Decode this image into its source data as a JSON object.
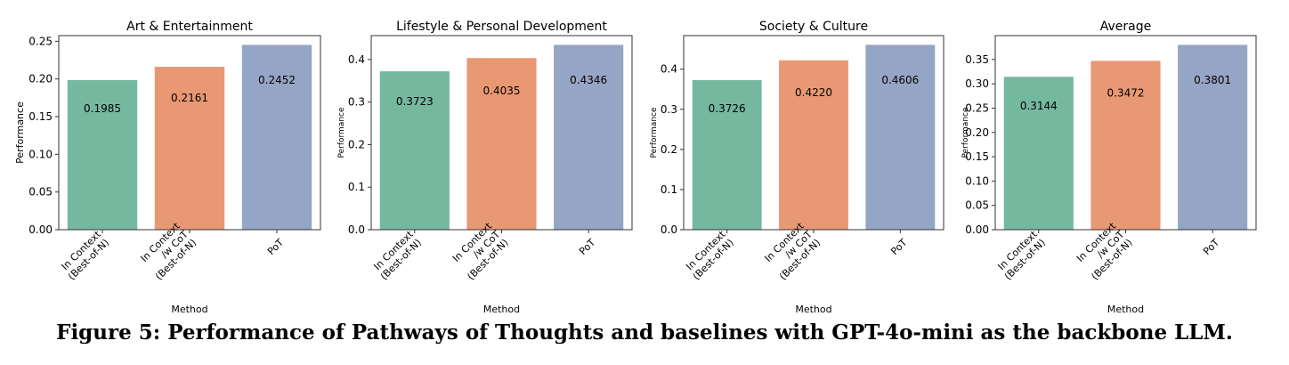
{
  "chart_data": [
    {
      "type": "bar",
      "title": "Art & Entertainment",
      "xlabel": "Method",
      "ylabel": "Performance",
      "categories": [
        "In Context\n(Best-of-N)",
        "In Context\n/w CoT\n(Best-of-N)",
        "PoT"
      ],
      "values": [
        0.1985,
        0.2161,
        0.2452
      ],
      "value_labels": [
        "0.1985",
        "0.2161",
        "0.2452"
      ],
      "colors": [
        "#75b8a0",
        "#e99874",
        "#95a5c5"
      ],
      "ylim": [
        0,
        0.2575
      ],
      "yticks": [
        0,
        0.05,
        0.1,
        0.15,
        0.2,
        0.25
      ],
      "ytick_labels": [
        "0.00",
        "0.05",
        "0.10",
        "0.15",
        "0.20",
        "0.25"
      ]
    },
    {
      "type": "bar",
      "title": "Lifestyle & Personal Development",
      "xlabel": "Method",
      "ylabel": "Performance",
      "categories": [
        "In Context\n(Best-of-N)",
        "In Context\n/w CoT\n(Best-of-N)",
        "PoT"
      ],
      "values": [
        0.3723,
        0.4035,
        0.4346
      ],
      "value_labels": [
        "0.3723",
        "0.4035",
        "0.4346"
      ],
      "colors": [
        "#75b8a0",
        "#e99874",
        "#95a5c5"
      ],
      "ylim": [
        0,
        0.4563
      ],
      "yticks": [
        0,
        0.1,
        0.2,
        0.3,
        0.4
      ],
      "ytick_labels": [
        "0.0",
        "0.1",
        "0.2",
        "0.3",
        "0.4"
      ]
    },
    {
      "type": "bar",
      "title": "Society & Culture",
      "xlabel": "Method",
      "ylabel": "Performance",
      "categories": [
        "In Context\n(Best-of-N)",
        "In Context\n/w CoT\n(Best-of-N)",
        "PoT"
      ],
      "values": [
        0.3726,
        0.422,
        0.4606
      ],
      "value_labels": [
        "0.3726",
        "0.4220",
        "0.4606"
      ],
      "colors": [
        "#75b8a0",
        "#e99874",
        "#95a5c5"
      ],
      "ylim": [
        0,
        0.4836
      ],
      "yticks": [
        0,
        0.1,
        0.2,
        0.3,
        0.4
      ],
      "ytick_labels": [
        "0.0",
        "0.1",
        "0.2",
        "0.3",
        "0.4"
      ]
    },
    {
      "type": "bar",
      "title": "Average",
      "xlabel": "Method",
      "ylabel": "Performance",
      "categories": [
        "In Context\n(Best-of-N)",
        "In Context\n/w CoT\n(Best-of-N)",
        "PoT"
      ],
      "values": [
        0.3144,
        0.3472,
        0.3801
      ],
      "value_labels": [
        "0.3144",
        "0.3472",
        "0.3801"
      ],
      "colors": [
        "#75b8a0",
        "#e99874",
        "#95a5c5"
      ],
      "ylim": [
        0,
        0.3991
      ],
      "yticks": [
        0,
        0.05,
        0.1,
        0.15,
        0.2,
        0.25,
        0.3,
        0.35
      ],
      "ytick_labels": [
        "0.00",
        "0.05",
        "0.10",
        "0.15",
        "0.20",
        "0.25",
        "0.30",
        "0.35"
      ]
    }
  ],
  "caption": "Figure 5: Performance of Pathways of Thoughts and baselines with GPT-4o-mini as the backbone LLM."
}
